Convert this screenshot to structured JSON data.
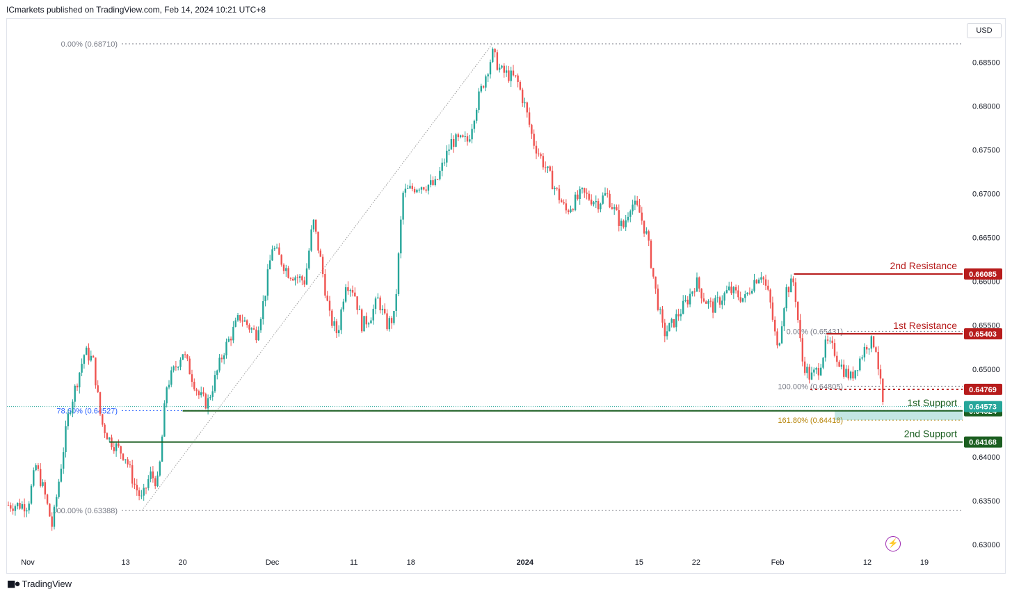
{
  "header": {
    "publisher": "ICmarkets published on TradingView.com, Feb 14, 2024 10:21 UTC+8"
  },
  "toolbar": {
    "currency": "USD"
  },
  "footer": {
    "brand": "TradingView"
  },
  "icons": {
    "logo": "tradingview-logo-icon",
    "flash": "lightning-icon"
  },
  "chart_data": {
    "type": "candlestick",
    "symbol_currency": "USD",
    "ylim": [
      0.629,
      0.6879
    ],
    "y_ticks": [
      "0.63000",
      "0.63500",
      "0.64000",
      "0.64500",
      "0.65000",
      "0.65500",
      "0.66000",
      "0.66500",
      "0.67000",
      "0.67500",
      "0.68000",
      "0.68500"
    ],
    "x_ticks": [
      {
        "label": "Nov",
        "date": "2023-11-01"
      },
      {
        "label": "13",
        "date": "2023-11-13"
      },
      {
        "label": "20",
        "date": "2023-11-20"
      },
      {
        "label": "Dec",
        "date": "2023-12-01"
      },
      {
        "label": "11",
        "date": "2023-12-11"
      },
      {
        "label": "18",
        "date": "2023-12-18"
      },
      {
        "label": "2024",
        "date": "2024-01-01",
        "bold": true
      },
      {
        "label": "15",
        "date": "2024-01-15"
      },
      {
        "label": "22",
        "date": "2024-01-22"
      },
      {
        "label": "Feb",
        "date": "2024-02-01"
      },
      {
        "label": "12",
        "date": "2024-02-12"
      },
      {
        "label": "19",
        "date": "2024-02-19"
      }
    ],
    "candle_colors": {
      "up": "#26a69a",
      "down": "#ef5350"
    },
    "price_path": [
      {
        "date": "2023-11-01",
        "price": 0.6345
      },
      {
        "date": "2023-11-02",
        "price": 0.639
      },
      {
        "date": "2023-11-03",
        "price": 0.636
      },
      {
        "date": "2023-11-04",
        "price": 0.632
      },
      {
        "date": "2023-11-06",
        "price": 0.645
      },
      {
        "date": "2023-11-08",
        "price": 0.652
      },
      {
        "date": "2023-11-09",
        "price": 0.651
      },
      {
        "date": "2023-11-10",
        "price": 0.644
      },
      {
        "date": "2023-11-11",
        "price": 0.642
      },
      {
        "date": "2023-11-13",
        "price": 0.64
      },
      {
        "date": "2023-11-14",
        "price": 0.637
      },
      {
        "date": "2023-11-15",
        "price": 0.635
      },
      {
        "date": "2023-11-16",
        "price": 0.638
      },
      {
        "date": "2023-11-17",
        "price": 0.637
      },
      {
        "date": "2023-11-18",
        "price": 0.648
      },
      {
        "date": "2023-11-20",
        "price": 0.652
      },
      {
        "date": "2023-11-22",
        "price": 0.647
      },
      {
        "date": "2023-11-23",
        "price": 0.646
      },
      {
        "date": "2023-11-25",
        "price": 0.652
      },
      {
        "date": "2023-11-27",
        "price": 0.656
      },
      {
        "date": "2023-11-29",
        "price": 0.654
      },
      {
        "date": "2023-11-30",
        "price": 0.658
      },
      {
        "date": "2023-12-01",
        "price": 0.664
      },
      {
        "date": "2023-12-03",
        "price": 0.661
      },
      {
        "date": "2023-12-05",
        "price": 0.66
      },
      {
        "date": "2023-12-06",
        "price": 0.667
      },
      {
        "date": "2023-12-07",
        "price": 0.662
      },
      {
        "date": "2023-12-08",
        "price": 0.656
      },
      {
        "date": "2023-12-09",
        "price": 0.654
      },
      {
        "date": "2023-12-10",
        "price": 0.66
      },
      {
        "date": "2023-12-11",
        "price": 0.659
      },
      {
        "date": "2023-12-12",
        "price": 0.655
      },
      {
        "date": "2023-12-13",
        "price": 0.656
      },
      {
        "date": "2023-12-14",
        "price": 0.658
      },
      {
        "date": "2023-12-15",
        "price": 0.655
      },
      {
        "date": "2023-12-16",
        "price": 0.656
      },
      {
        "date": "2023-12-17",
        "price": 0.67
      },
      {
        "date": "2023-12-19",
        "price": 0.671
      },
      {
        "date": "2023-12-21",
        "price": 0.671
      },
      {
        "date": "2023-12-23",
        "price": 0.676
      },
      {
        "date": "2023-12-25",
        "price": 0.676
      },
      {
        "date": "2023-12-26",
        "price": 0.68
      },
      {
        "date": "2023-12-27",
        "price": 0.683
      },
      {
        "date": "2023-12-28",
        "price": 0.686
      },
      {
        "date": "2023-12-29",
        "price": 0.684
      },
      {
        "date": "2023-12-31",
        "price": 0.683
      },
      {
        "date": "2024-01-01",
        "price": 0.68
      },
      {
        "date": "2024-01-02",
        "price": 0.676
      },
      {
        "date": "2024-01-04",
        "price": 0.672
      },
      {
        "date": "2024-01-05",
        "price": 0.67
      },
      {
        "date": "2024-01-06",
        "price": 0.668
      },
      {
        "date": "2024-01-08",
        "price": 0.67
      },
      {
        "date": "2024-01-10",
        "price": 0.669
      },
      {
        "date": "2024-01-11",
        "price": 0.67
      },
      {
        "date": "2024-01-12",
        "price": 0.668
      },
      {
        "date": "2024-01-13",
        "price": 0.666
      },
      {
        "date": "2024-01-14",
        "price": 0.669
      },
      {
        "date": "2024-01-15",
        "price": 0.668
      },
      {
        "date": "2024-01-16",
        "price": 0.665
      },
      {
        "date": "2024-01-17",
        "price": 0.659
      },
      {
        "date": "2024-01-18",
        "price": 0.654
      },
      {
        "date": "2024-01-19",
        "price": 0.655
      },
      {
        "date": "2024-01-21",
        "price": 0.658
      },
      {
        "date": "2024-01-22",
        "price": 0.66
      },
      {
        "date": "2024-01-23",
        "price": 0.658
      },
      {
        "date": "2024-01-24",
        "price": 0.657
      },
      {
        "date": "2024-01-26",
        "price": 0.659
      },
      {
        "date": "2024-01-28",
        "price": 0.658
      },
      {
        "date": "2024-01-29",
        "price": 0.66
      },
      {
        "date": "2024-01-30",
        "price": 0.661
      },
      {
        "date": "2024-01-31",
        "price": 0.658
      },
      {
        "date": "2024-02-01",
        "price": 0.652
      },
      {
        "date": "2024-02-02",
        "price": 0.659
      },
      {
        "date": "2024-02-03",
        "price": 0.66
      },
      {
        "date": "2024-02-04",
        "price": 0.651
      },
      {
        "date": "2024-02-05",
        "price": 0.649
      },
      {
        "date": "2024-02-06",
        "price": 0.65
      },
      {
        "date": "2024-02-07",
        "price": 0.653
      },
      {
        "date": "2024-02-08",
        "price": 0.652
      },
      {
        "date": "2024-02-09",
        "price": 0.65
      },
      {
        "date": "2024-02-10",
        "price": 0.649
      },
      {
        "date": "2024-02-11",
        "price": 0.651
      },
      {
        "date": "2024-02-12",
        "price": 0.653
      },
      {
        "date": "2024-02-13",
        "price": 0.653
      },
      {
        "date": "2024-02-14",
        "price": 0.6452
      }
    ],
    "levels": [
      {
        "name": "2nd Resistance",
        "label": "2nd Resistance",
        "value": 0.66085,
        "value_label": "0.66085",
        "color": "#b71c1c",
        "style": "solid",
        "start": "2024-02-03"
      },
      {
        "name": "1st Resistance",
        "label": "1st Resistance",
        "value": 0.65403,
        "value_label": "0.65403",
        "color": "#b71c1c",
        "style": "solid",
        "start": "2024-02-07"
      },
      {
        "name": "intermediate",
        "label": "",
        "value": 0.64769,
        "value_label": "0.64769",
        "color": "#b71c1c",
        "style": "dotted",
        "start": "2024-02-05"
      },
      {
        "name": "1st Support",
        "label": "1st Support",
        "value": 0.64524,
        "value_label": "0.64524",
        "color": "#1b5e20",
        "style": "solid",
        "start": "2023-11-20"
      },
      {
        "name": "2nd Support",
        "label": "2nd Support",
        "value": 0.64168,
        "value_label": "0.64168",
        "color": "#1b5e20",
        "style": "solid",
        "start": "2023-11-11"
      }
    ],
    "current_price": {
      "value": 0.64573,
      "label": "0.64573",
      "color": "#26a69a"
    },
    "fib_labels": [
      {
        "text": "0.00% (0.68710)",
        "value": 0.6871,
        "start": "2023-11-01",
        "color": "#787b86"
      },
      {
        "text": "100.00% (0.63388)",
        "value": 0.63388,
        "start": "2023-11-01",
        "color": "#787b86"
      },
      {
        "text": "78.60% (0.64527)",
        "value": 0.64527,
        "start": "2023-11-01",
        "color": "#2962ff"
      },
      {
        "text": "0.00% (0.65431)",
        "value": 0.65431,
        "start": "2024-02-03",
        "color": "#787b86"
      },
      {
        "text": "100.00% (0.64805)",
        "value": 0.64805,
        "start": "2024-02-03",
        "color": "#787b86"
      },
      {
        "text": "161.80% (0.64418)",
        "value": 0.64418,
        "start": "2024-02-03",
        "color": "#b8860b"
      }
    ],
    "trend_line": {
      "from": {
        "date": "2023-11-15",
        "price": 0.63388
      },
      "to": {
        "date": "2023-12-28",
        "price": 0.6871
      }
    },
    "support_zone": {
      "from": 0.64418,
      "to": 0.64524,
      "start": "2024-02-08",
      "color": "#26a69a"
    }
  }
}
